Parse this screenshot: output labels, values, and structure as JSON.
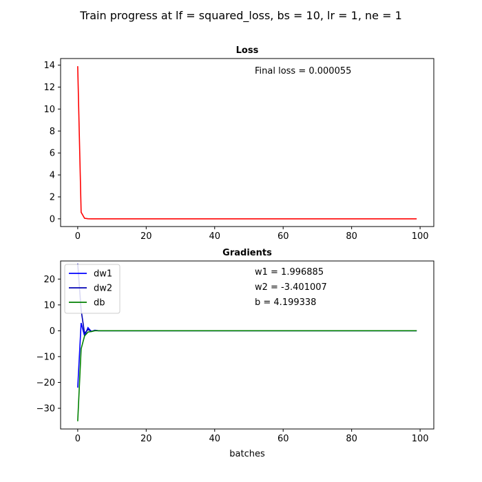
{
  "figure": {
    "suptitle": "Train progress at lf = squared_loss, bs = 10, lr = 1, ne = 1"
  },
  "chart_data": [
    {
      "type": "line",
      "title": "Loss",
      "xlabel": "",
      "ylabel": "",
      "xlim": [
        -5,
        104
      ],
      "ylim": [
        -0.7,
        14.6
      ],
      "xticks": [
        0,
        20,
        40,
        60,
        80,
        100
      ],
      "yticks": [
        0,
        2,
        4,
        6,
        8,
        10,
        12,
        14
      ],
      "grid": false,
      "annotations": [
        "Final loss = 0.000055"
      ],
      "series": [
        {
          "color": "#ff0000",
          "x": [
            0,
            1,
            2,
            3,
            4,
            5,
            10,
            20,
            40,
            60,
            80,
            99
          ],
          "y": [
            13.9,
            0.6,
            0.05,
            0.01,
            0.0,
            0.0,
            0.0,
            0.0,
            0.0,
            0.0,
            0.0,
            5.5e-05
          ]
        }
      ]
    },
    {
      "type": "line",
      "title": "Gradients",
      "xlabel": "batches",
      "ylabel": "",
      "xlim": [
        -5,
        104
      ],
      "ylim": [
        -38,
        27
      ],
      "xticks": [
        0,
        20,
        40,
        60,
        80,
        100
      ],
      "yticks": [
        -30,
        -20,
        -10,
        0,
        10,
        20
      ],
      "grid": false,
      "legend": "top-left",
      "annotations": [
        "w1 = 1.996885",
        "w2 = -3.401007",
        "b = 4.199338"
      ],
      "series": [
        {
          "name": "dw1",
          "color": "#0000ff",
          "x": [
            0,
            1,
            2,
            3,
            4,
            5,
            6,
            10,
            20,
            40,
            60,
            80,
            99
          ],
          "y": [
            -22,
            3,
            -2,
            1.2,
            -0.3,
            0.2,
            0,
            0,
            0,
            0,
            0,
            0,
            0
          ]
        },
        {
          "name": "dw2",
          "color": "#0000b4",
          "x": [
            0,
            1,
            2,
            3,
            4,
            5,
            6,
            10,
            20,
            40,
            60,
            80,
            99
          ],
          "y": [
            26,
            8,
            -1,
            0.5,
            -0.2,
            0.1,
            0,
            0,
            0,
            0,
            0,
            0,
            0
          ]
        },
        {
          "name": "db",
          "color": "#008000",
          "x": [
            0,
            1,
            2,
            3,
            4,
            5,
            6,
            10,
            20,
            40,
            60,
            80,
            99
          ],
          "y": [
            -35,
            -7,
            -2,
            -0.5,
            -0.3,
            0,
            0,
            0,
            0,
            0,
            0,
            0,
            0
          ]
        }
      ]
    }
  ]
}
